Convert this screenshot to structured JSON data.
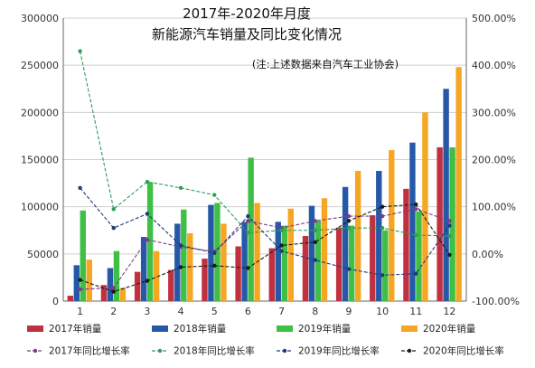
{
  "chart_data": {
    "type": "bar",
    "title_line1": "2017年-2020年月度",
    "title_line2": "新能源汽车销量及同比变化情况",
    "note": "(注:上述数据来自汽车工业协会)",
    "categories": [
      "1",
      "2",
      "3",
      "4",
      "5",
      "6",
      "7",
      "8",
      "9",
      "10",
      "11",
      "12"
    ],
    "left_axis": {
      "min": 0,
      "max": 300000,
      "ticks": [
        0,
        50000,
        100000,
        150000,
        200000,
        250000,
        300000
      ],
      "tick_labels": [
        "0",
        "50000",
        "100000",
        "150000",
        "200000",
        "250000",
        "300000"
      ]
    },
    "right_axis": {
      "min": -100,
      "max": 500,
      "ticks": [
        -100,
        0,
        100,
        200,
        300,
        400,
        500
      ],
      "tick_labels": [
        "-100.00%",
        "0.00%",
        "100.00%",
        "200.00%",
        "300.00%",
        "400.00%",
        "500.00%"
      ]
    },
    "grid": true,
    "legend_position": "bottom",
    "bar_series": [
      {
        "name": "2017年销量",
        "color": "#c0303f",
        "values": [
          5700,
          17000,
          31000,
          33000,
          45000,
          58000,
          56000,
          69000,
          78000,
          91000,
          119000,
          163000
        ]
      },
      {
        "name": "2018年销量",
        "color": "#2559a8",
        "values": [
          38000,
          35000,
          68000,
          82000,
          102000,
          84000,
          84000,
          101000,
          121000,
          138000,
          168000,
          225000
        ]
      },
      {
        "name": "2019年销量",
        "color": "#3fbf46",
        "values": [
          96000,
          53000,
          126000,
          97000,
          104000,
          152000,
          80000,
          85000,
          80000,
          75000,
          95000,
          163000
        ]
      },
      {
        "name": "2020年销量",
        "color": "#f5a623",
        "values": [
          44000,
          14000,
          53000,
          72000,
          82000,
          104000,
          98000,
          109000,
          138000,
          160000,
          200000,
          248000
        ]
      }
    ],
    "line_series": [
      {
        "name": "2017年同比增长率",
        "color": "#7e3a8e",
        "values": [
          -75,
          -72,
          30,
          15,
          5,
          70,
          55,
          70,
          80,
          80,
          95,
          70
        ]
      },
      {
        "name": "2018年同比增长率",
        "color": "#2e9e5a",
        "values": [
          430,
          95,
          153,
          140,
          125,
          45,
          50,
          50,
          55,
          55,
          40,
          38
        ]
      },
      {
        "name": "2019年同比增长率",
        "color": "#1f3b7a",
        "values": [
          140,
          55,
          85,
          18,
          2,
          80,
          6,
          -13,
          -32,
          -45,
          -42,
          60
        ]
      },
      {
        "name": "2020年同比增长率",
        "color": "#1a1a1a",
        "values": [
          -55,
          -80,
          -57,
          -28,
          -25,
          -30,
          18,
          25,
          70,
          100,
          105,
          -2
        ]
      }
    ]
  }
}
